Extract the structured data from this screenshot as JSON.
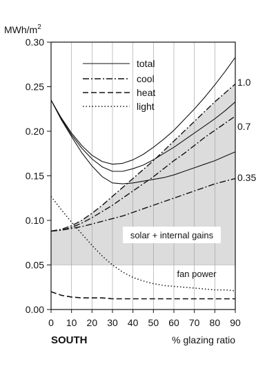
{
  "chart_data": {
    "type": "line",
    "y_unit_label": "MWh/m",
    "y_unit_sup": "2",
    "xlabel": "% glazing ratio",
    "orientation_label": "SOUTH",
    "xlim": [
      0,
      90
    ],
    "ylim": [
      0,
      0.3
    ],
    "x_ticks": [
      "0",
      "10",
      "20",
      "30",
      "40",
      "50",
      "60",
      "70",
      "80",
      "90"
    ],
    "y_ticks": [
      "0.00",
      "0.05",
      "0.10",
      "0.15",
      "0.20",
      "0.25",
      "0.30"
    ],
    "grid": "vertical",
    "legend_position": "top-center",
    "legend": [
      {
        "label": "total",
        "style": "solid"
      },
      {
        "label": "cool",
        "style": "dash-dot"
      },
      {
        "label": "heat",
        "style": "dashed"
      },
      {
        "label": "light",
        "style": "dotted"
      }
    ],
    "x": [
      0,
      5,
      10,
      15,
      20,
      25,
      30,
      35,
      40,
      45,
      50,
      55,
      60,
      65,
      70,
      75,
      80,
      85,
      90
    ],
    "series": [
      {
        "name": "total",
        "group": "1.0",
        "style": "solid",
        "values": [
          0.235,
          0.215,
          0.198,
          0.184,
          0.173,
          0.166,
          0.163,
          0.164,
          0.168,
          0.174,
          0.182,
          0.191,
          0.201,
          0.213,
          0.225,
          0.238,
          0.252,
          0.267,
          0.283
        ]
      },
      {
        "name": "total",
        "group": "0.7",
        "style": "solid",
        "values": [
          0.235,
          0.214,
          0.196,
          0.181,
          0.169,
          0.16,
          0.155,
          0.155,
          0.158,
          0.162,
          0.168,
          0.175,
          0.182,
          0.19,
          0.198,
          0.206,
          0.214,
          0.223,
          0.233
        ]
      },
      {
        "name": "total",
        "group": "0.35",
        "style": "solid",
        "values": [
          0.235,
          0.213,
          0.194,
          0.176,
          0.161,
          0.149,
          0.142,
          0.141,
          0.142,
          0.144,
          0.146,
          0.148,
          0.151,
          0.155,
          0.159,
          0.163,
          0.167,
          0.172,
          0.177
        ]
      },
      {
        "name": "cool",
        "group": "1.0",
        "style": "dash-dot",
        "values": [
          0.088,
          0.09,
          0.094,
          0.1,
          0.108,
          0.117,
          0.127,
          0.137,
          0.147,
          0.157,
          0.167,
          0.178,
          0.189,
          0.2,
          0.211,
          0.222,
          0.233,
          0.243,
          0.253
        ]
      },
      {
        "name": "cool",
        "group": "0.7",
        "style": "dash-dot",
        "values": [
          0.088,
          0.089,
          0.092,
          0.097,
          0.103,
          0.11,
          0.117,
          0.125,
          0.133,
          0.141,
          0.149,
          0.158,
          0.167,
          0.175,
          0.184,
          0.193,
          0.201,
          0.209,
          0.217
        ]
      },
      {
        "name": "cool",
        "group": "0.35",
        "style": "dash-dot",
        "values": [
          0.088,
          0.089,
          0.091,
          0.093,
          0.096,
          0.099,
          0.102,
          0.105,
          0.109,
          0.113,
          0.117,
          0.121,
          0.125,
          0.129,
          0.133,
          0.137,
          0.141,
          0.144,
          0.147
        ]
      },
      {
        "name": "heat",
        "style": "dashed",
        "values": [
          0.02,
          0.016,
          0.014,
          0.013,
          0.013,
          0.013,
          0.012,
          0.012,
          0.012,
          0.012,
          0.012,
          0.012,
          0.012,
          0.012,
          0.012,
          0.012,
          0.012,
          0.012,
          0.012
        ]
      },
      {
        "name": "light",
        "style": "dotted",
        "values": [
          0.127,
          0.112,
          0.098,
          0.085,
          0.072,
          0.06,
          0.05,
          0.042,
          0.036,
          0.032,
          0.029,
          0.027,
          0.026,
          0.025,
          0.024,
          0.023,
          0.022,
          0.022,
          0.021
        ]
      }
    ],
    "curve_labels": [
      "1.0",
      "0.7",
      "0.35"
    ],
    "bands": [
      {
        "label": "fan power",
        "from": 0.0,
        "to": 0.05,
        "color": "#ffffff"
      },
      {
        "label": "solar + internal gains",
        "lower": [
          0.05,
          0.05,
          0.05,
          0.05,
          0.05,
          0.05,
          0.05,
          0.05,
          0.05,
          0.05,
          0.05,
          0.05,
          0.05,
          0.05,
          0.05,
          0.05,
          0.05,
          0.05,
          0.05
        ],
        "color": "#dcdcdc"
      }
    ]
  }
}
